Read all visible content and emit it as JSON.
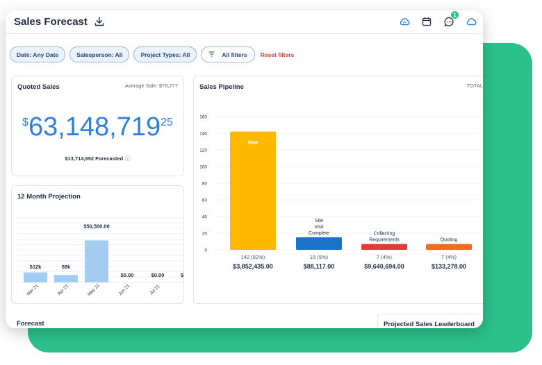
{
  "app": {
    "title": "Sales Forecast",
    "notification_count": "1"
  },
  "filters": {
    "date": "Date: Any Date",
    "salesperson": "Salesperson: All",
    "project_types": "Project Types: All",
    "all_filters": "All filters",
    "reset": "Reset filters"
  },
  "quoted_sales": {
    "title": "Quoted Sales",
    "average": "Average Sale: $79,277",
    "currency": "$",
    "amount_main": "63,148,719",
    "amount_cents": "25",
    "forecasted": "$13,714,952 Forecasted",
    "info_icon": "info-icon"
  },
  "projection": {
    "title": "12 Month Projection",
    "chart_data": {
      "type": "bar",
      "categories": [
        "Mar 21",
        "Apr 21",
        "May 21",
        "Jun 21",
        "Jul 21"
      ],
      "values": [
        12000,
        9000,
        50500,
        0,
        0
      ],
      "data_labels": [
        "$12k",
        "$9k",
        "$50,500.00",
        "$0.00",
        "$0.00"
      ],
      "truncated_label": "$",
      "grid": true
    }
  },
  "pipeline": {
    "title": "Sales Pipeline",
    "total_label": "TOTAL",
    "chart_data": {
      "type": "bar",
      "categories": [
        "New",
        "Site Visit Complete",
        "Collecting Requirements",
        "Quoting"
      ],
      "category_lines": [
        [
          "New"
        ],
        [
          "Site",
          "Visit",
          "Complete"
        ],
        [
          "Collecting",
          "Requirements"
        ],
        [
          "Quoting"
        ]
      ],
      "values": [
        142,
        15,
        7,
        7
      ],
      "counts": [
        "142 (82%)",
        "15 (9%)",
        "7 (4%)",
        "7 (4%)"
      ],
      "amounts": [
        "$3,852,435.00",
        "$88,117.00",
        "$9,640,694.00",
        "$133,278.00"
      ],
      "colors": [
        "#fcb900",
        "#1a73c9",
        "#e33b3b",
        "#f26b21"
      ],
      "yticks": [
        0,
        20,
        40,
        60,
        80,
        100,
        120,
        140,
        160
      ],
      "ylim": [
        0,
        160
      ],
      "grid": true
    }
  },
  "bottom": {
    "forecast_title": "Forecast",
    "leaderboard_title": "Projected Sales Leaderboard"
  },
  "icons": {
    "download": "download-icon",
    "cloud": "cloud-icon",
    "calendar": "calendar-icon",
    "chat": "chat-icon",
    "filter": "filter-icon"
  }
}
